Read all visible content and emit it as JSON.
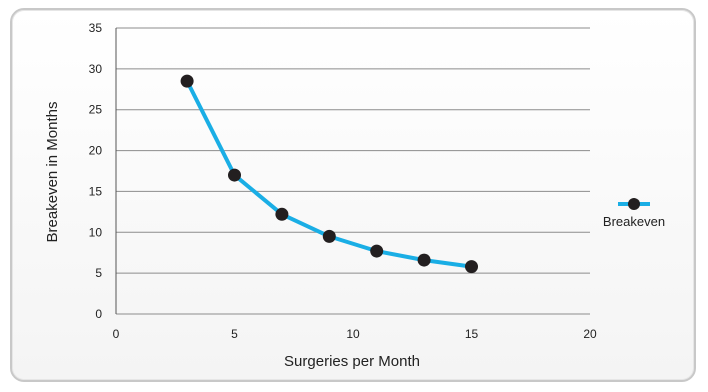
{
  "chart_data": {
    "type": "line",
    "xlabel": "Surgeries per Month",
    "ylabel": "Breakeven in Months",
    "xlim": [
      0,
      20
    ],
    "ylim": [
      0,
      35
    ],
    "x_ticks": [
      0,
      5,
      10,
      15,
      20
    ],
    "y_ticks": [
      0,
      5,
      10,
      15,
      20,
      25,
      30,
      35
    ],
    "grid": "horizontal",
    "legend_position": "right",
    "series": [
      {
        "name": "Breakeven",
        "color": "#1aaee5",
        "marker_color": "#231f20",
        "x": [
          3,
          5,
          7,
          9,
          11,
          13,
          15
        ],
        "values": [
          28.5,
          17,
          12.2,
          9.5,
          7.7,
          6.6,
          5.8
        ]
      }
    ]
  }
}
